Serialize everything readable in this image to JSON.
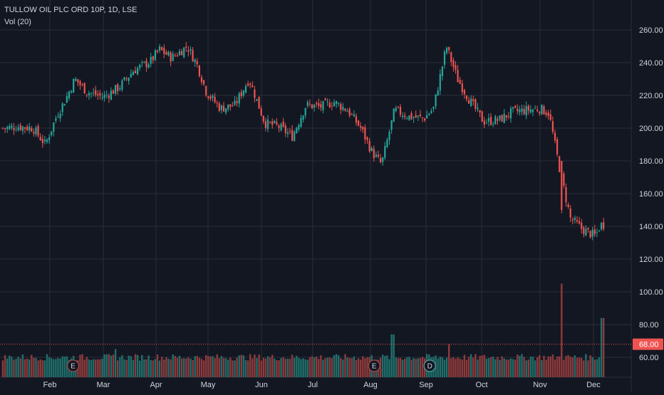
{
  "legend": {
    "symbol_line": "TULLOW OIL PLC ORD 10P, 1D, LSE",
    "volume_line": "Vol (20)"
  },
  "colors": {
    "background": "#131722",
    "grid": "#2a2e39",
    "up": "#26a69a",
    "down": "#ef5350",
    "up_volume": "#1f6f6b",
    "down_volume": "#8e3a3c",
    "text": "#d1d4dc",
    "price_line": "#ef5350"
  },
  "events": [
    {
      "label": "E",
      "date": "Feb 14"
    },
    {
      "label": "E",
      "date": "Aug 3"
    },
    {
      "label": "D",
      "date": "Sep 3"
    }
  ],
  "chart_data": {
    "type": "candlestick",
    "title": "TULLOW OIL PLC ORD 10P, 1D, LSE",
    "x_axis_labels": [
      "Feb",
      "Mar",
      "Apr",
      "May",
      "Jun",
      "Jul",
      "Aug",
      "Sep",
      "Oct",
      "Nov",
      "Dec"
    ],
    "y_axis_labels": [
      "260.00",
      "240.00",
      "220.00",
      "200.00",
      "180.00",
      "160.00",
      "140.00",
      "120.00",
      "100.00",
      "80.00",
      "60.00"
    ],
    "ylim": [
      47,
      270
    ],
    "last_price_label": "68.00",
    "last_price": 68,
    "grid": true,
    "volume_indicator": "Vol (20)",
    "series": [
      {
        "name": "TULLOW OIL PLC ORD 10P",
        "approximate_path": [
          {
            "date": "Jan 2",
            "close": 200
          },
          {
            "date": "Jan 10",
            "close": 201
          },
          {
            "date": "Jan 20",
            "close": 200
          },
          {
            "date": "Jan 28",
            "close": 190
          },
          {
            "date": "Feb 5",
            "close": 208
          },
          {
            "date": "Feb 10",
            "close": 218
          },
          {
            "date": "Feb 15",
            "close": 230
          },
          {
            "date": "Feb 22",
            "close": 222
          },
          {
            "date": "Mar 1",
            "close": 219
          },
          {
            "date": "Mar 10",
            "close": 225
          },
          {
            "date": "Mar 18",
            "close": 235
          },
          {
            "date": "Mar 28",
            "close": 241
          },
          {
            "date": "Apr 3",
            "close": 248
          },
          {
            "date": "Apr 10",
            "close": 243
          },
          {
            "date": "Apr 19",
            "close": 250
          },
          {
            "date": "Apr 25",
            "close": 238
          },
          {
            "date": "Apr 30",
            "close": 222
          },
          {
            "date": "May 8",
            "close": 212
          },
          {
            "date": "May 16",
            "close": 214
          },
          {
            "date": "May 24",
            "close": 230
          },
          {
            "date": "May 29",
            "close": 215
          },
          {
            "date": "Jun 3",
            "close": 203
          },
          {
            "date": "Jun 11",
            "close": 201
          },
          {
            "date": "Jun 19",
            "close": 195
          },
          {
            "date": "Jun 27",
            "close": 214
          },
          {
            "date": "Jul 5",
            "close": 213
          },
          {
            "date": "Jul 12",
            "close": 216
          },
          {
            "date": "Jul 19",
            "close": 211
          },
          {
            "date": "Jul 26",
            "close": 200
          },
          {
            "date": "Aug 2",
            "close": 185
          },
          {
            "date": "Aug 7",
            "close": 178
          },
          {
            "date": "Aug 14",
            "close": 211
          },
          {
            "date": "Aug 22",
            "close": 207
          },
          {
            "date": "Aug 30",
            "close": 206
          },
          {
            "date": "Sep 5",
            "close": 212
          },
          {
            "date": "Sep 12",
            "close": 250
          },
          {
            "date": "Sep 18",
            "close": 230
          },
          {
            "date": "Sep 24",
            "close": 218
          },
          {
            "date": "Oct 2",
            "close": 204
          },
          {
            "date": "Oct 10",
            "close": 205
          },
          {
            "date": "Oct 17",
            "close": 210
          },
          {
            "date": "Oct 24",
            "close": 211
          },
          {
            "date": "Oct 31",
            "close": 212
          },
          {
            "date": "Nov 6",
            "close": 209
          },
          {
            "date": "Nov 12",
            "close": 175
          },
          {
            "date": "Nov 18",
            "close": 145
          },
          {
            "date": "Nov 25",
            "close": 138
          },
          {
            "date": "Dec 2",
            "close": 134
          },
          {
            "date": "Dec 5",
            "close": 141
          }
        ]
      }
    ],
    "volume": {
      "name": "Vol (20)",
      "spikes": [
        {
          "date": "Nov 13",
          "value": 105
        },
        {
          "date": "Dec 6",
          "value": 84
        },
        {
          "date": "Aug 13",
          "value": 74
        },
        {
          "date": "Sep 13",
          "value": 68
        },
        {
          "date": "Mar 8",
          "value": 65
        }
      ]
    }
  }
}
